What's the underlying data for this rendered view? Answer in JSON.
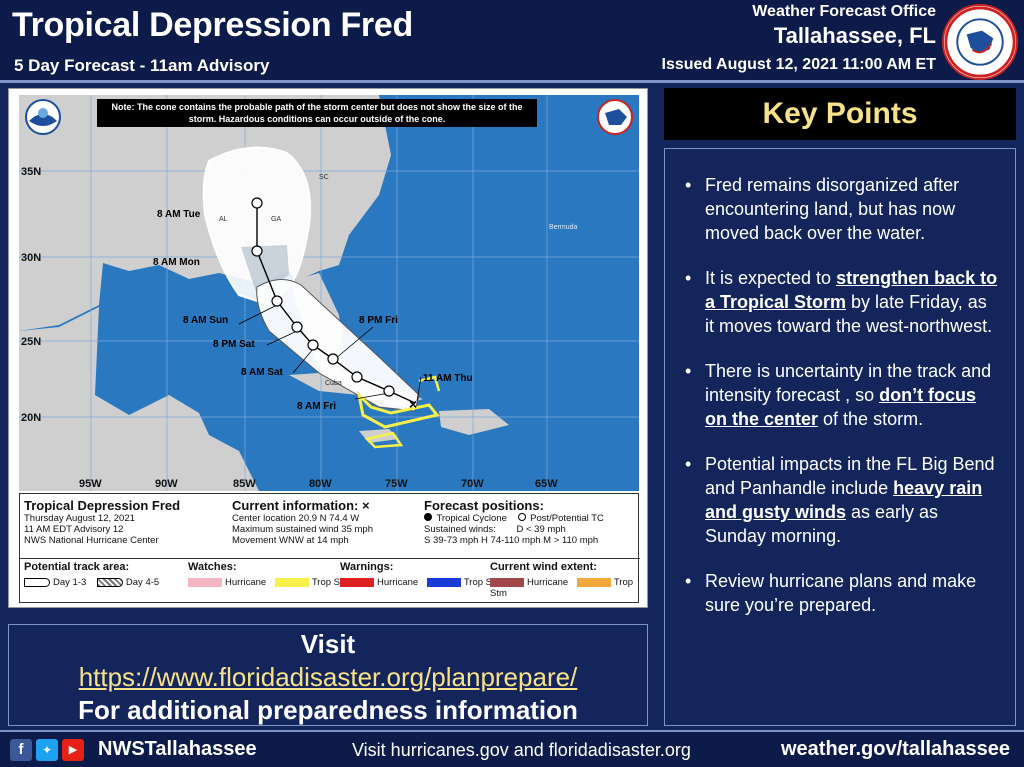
{
  "header": {
    "title": "Tropical Depression Fred",
    "subtitle": "5 Day Forecast - 11am Advisory",
    "office_line1": "Weather Forecast Office",
    "office_line2": "Tallahassee, FL",
    "issued": "Issued August 12, 2021 11:00 AM ET",
    "seal_text": "NATIONAL WEATHER SERVICE"
  },
  "map": {
    "note": "Note: The cone contains the probable path of the storm center but does not show the size of the storm. Hazardous conditions can occur outside of the cone.",
    "lat_labels": [
      "35N",
      "30N",
      "25N",
      "20N"
    ],
    "lon_labels": [
      "95W",
      "90W",
      "85W",
      "80W",
      "75W",
      "70W",
      "65W"
    ],
    "places": [
      "AL",
      "GA",
      "SC",
      "Bermuda",
      "Cuba"
    ],
    "forecast_points": [
      {
        "label": "11 AM Thu",
        "type": "current"
      },
      {
        "label": "8 AM Fri",
        "type": "depression"
      },
      {
        "label": "8 PM Fri",
        "type": "depression"
      },
      {
        "label": "8 AM Sat",
        "type": "storm"
      },
      {
        "label": "8 PM Sat",
        "type": "storm"
      },
      {
        "label": "8 AM Sun",
        "type": "storm"
      },
      {
        "label": "8 AM Mon",
        "type": "storm"
      },
      {
        "label": "8 AM Tue",
        "type": "depression"
      }
    ],
    "legend": {
      "storm_name": "Tropical Depression Fred",
      "date": "Thursday August 12, 2021",
      "advisory": "11 AM EDT Advisory 12",
      "center": "NWS National Hurricane Center",
      "current_hd": "Current information: ×",
      "location": "Center location 20.9 N 74.4 W",
      "max_wind": "Maximum sustained wind 35 mph",
      "movement": "Movement WNW at 14 mph",
      "forecast_hd": "Forecast positions:",
      "tc": "Tropical Cyclone",
      "post_tc": "Post/Potential TC",
      "sustained": "Sustained winds:",
      "d": "D < 39 mph",
      "scale": "S 39-73 mph  H 74-110 mph  M > 110 mph",
      "track_hd": "Potential track area:",
      "day13": "Day 1-3",
      "day45": "Day 4-5",
      "watches_hd": "Watches:",
      "warnings_hd": "Warnings:",
      "wind_hd": "Current wind extent:",
      "hurricane": "Hurricane",
      "trop_stm": "Trop Stm"
    }
  },
  "key_points": {
    "title": "Key Points",
    "items": [
      {
        "pre": "Fred remains disorganized after encountering land, but has now moved back over the water.",
        "u": "",
        "post": ""
      },
      {
        "pre": "It is expected to ",
        "u": "strengthen back to a Tropical Storm",
        "post": " by late Friday, as it moves toward the west-northwest."
      },
      {
        "pre": "There is uncertainty in the track and intensity forecast , so ",
        "u": "don’t focus on the center",
        "post": " of the storm."
      },
      {
        "pre": "Potential impacts in the FL Big Bend and Panhandle include ",
        "u": "heavy rain and gusty winds",
        "post": " as early as Sunday morning."
      },
      {
        "pre": "Review  hurricane plans and make sure you’re prepared.",
        "u": "",
        "post": ""
      }
    ]
  },
  "visit": {
    "line1": "Visit",
    "url": "https://www.floridadisaster.org/planprepare/",
    "line3": "For additional preparedness information"
  },
  "footer": {
    "handle": "NWSTallahassee",
    "middle": "Visit hurricanes.gov and floridadisaster.org",
    "right": "weather.gov/tallahassee"
  },
  "colors": {
    "navy": "#14255c",
    "header": "#0d1b4a",
    "accent_yellow": "#f7e28a",
    "ocean": "#2a78c0",
    "land": "#cfcfcf",
    "hurricane_watch": "#f4b6c2",
    "trop_stm_watch": "#f7f04a",
    "hurricane_warning": "#e02020",
    "trop_stm_warning": "#1a3cd6",
    "hurricane_wind": "#a0484a",
    "trop_stm_wind": "#f2a83a"
  }
}
